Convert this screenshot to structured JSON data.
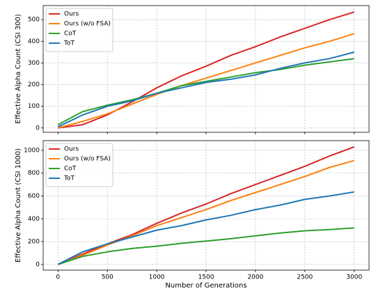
{
  "chart_data": [
    {
      "type": "line",
      "y_label": "Effective Alpha Count (CSI 300)",
      "x": [
        0,
        250,
        500,
        750,
        1000,
        1250,
        1500,
        1750,
        2000,
        2250,
        2500,
        2750,
        3000
      ],
      "series": [
        {
          "name": "Ours",
          "color": "#d62728",
          "values": [
            0,
            15,
            60,
            120,
            185,
            240,
            285,
            335,
            375,
            420,
            460,
            500,
            535
          ]
        },
        {
          "name": "Ours (w/o FSA)",
          "color": "#ff7f0e",
          "values": [
            0,
            30,
            65,
            110,
            155,
            195,
            230,
            265,
            300,
            335,
            370,
            400,
            435
          ]
        },
        {
          "name": "CoT",
          "color": "#2ca02c",
          "values": [
            15,
            75,
            105,
            130,
            160,
            195,
            215,
            235,
            255,
            270,
            290,
            305,
            320
          ]
        },
        {
          "name": "ToT",
          "color": "#1f77b4",
          "values": [
            5,
            60,
            100,
            125,
            160,
            185,
            210,
            225,
            245,
            275,
            300,
            320,
            350
          ]
        }
      ],
      "xlim": [
        -150,
        3150
      ],
      "xticks": [
        0,
        500,
        1000,
        1500,
        2000,
        2500,
        3000
      ],
      "ylim": [
        -20,
        565
      ],
      "yticks": [
        0,
        100,
        200,
        300,
        400,
        500
      ],
      "grid": true,
      "legend": "upper-left"
    },
    {
      "type": "line",
      "x_label": "Number of Generations",
      "y_label": "Effective Alpha Count (CSI 1000)",
      "x": [
        0,
        250,
        500,
        750,
        1000,
        1250,
        1500,
        1750,
        2000,
        2250,
        2500,
        2750,
        3000
      ],
      "series": [
        {
          "name": "Ours",
          "color": "#d62728",
          "values": [
            0,
            90,
            180,
            260,
            360,
            450,
            530,
            620,
            700,
            780,
            860,
            950,
            1030
          ]
        },
        {
          "name": "Ours (w/o FSA)",
          "color": "#ff7f0e",
          "values": [
            0,
            80,
            170,
            250,
            340,
            410,
            480,
            560,
            630,
            700,
            770,
            850,
            910
          ]
        },
        {
          "name": "CoT",
          "color": "#2ca02c",
          "values": [
            0,
            70,
            110,
            140,
            160,
            185,
            205,
            225,
            250,
            275,
            295,
            305,
            320
          ]
        },
        {
          "name": "ToT",
          "color": "#1f77b4",
          "values": [
            0,
            110,
            180,
            240,
            300,
            340,
            390,
            430,
            480,
            520,
            570,
            600,
            635
          ]
        }
      ],
      "xlim": [
        -150,
        3150
      ],
      "xticks": [
        0,
        500,
        1000,
        1500,
        2000,
        2500,
        3000
      ],
      "show_xtick_labels": true,
      "ylim": [
        -50,
        1085
      ],
      "yticks": [
        0,
        200,
        400,
        600,
        800,
        1000
      ],
      "grid": true,
      "legend": "upper-left"
    }
  ]
}
